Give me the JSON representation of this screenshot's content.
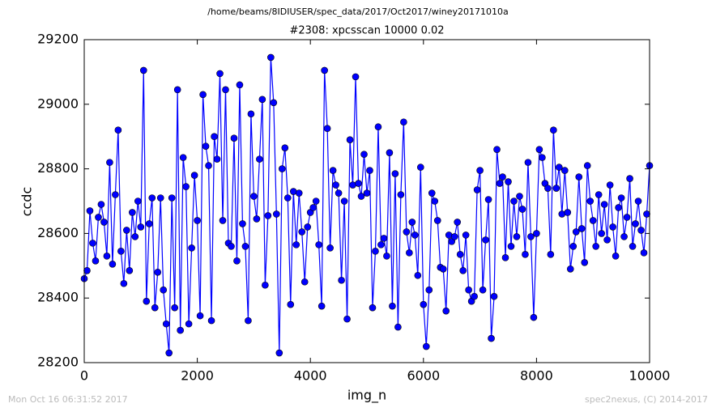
{
  "chart_data": {
    "type": "line",
    "suptitle": "/home/beams/8IDIUSER/spec_data/2017/Oct2017/winey20171010a",
    "title": "#2308: xpcsscan 10000 0.02",
    "xlabel": "img_n",
    "ylabel": "ccdc",
    "footer_left": "Mon Oct 16 06:31:52 2017",
    "footer_right": "spec2nexus, (C) 2014-2017",
    "color": "#0000ff",
    "marker": "circle",
    "xlim": [
      0,
      10000
    ],
    "xticks": [
      0,
      2000,
      4000,
      6000,
      8000,
      10000
    ],
    "ylim": [
      28200,
      29200
    ],
    "yticks": [
      28200,
      28400,
      28600,
      28800,
      29000,
      29200
    ],
    "x": [
      0,
      50,
      100,
      150,
      200,
      250,
      300,
      350,
      400,
      450,
      500,
      550,
      600,
      650,
      700,
      750,
      800,
      850,
      900,
      950,
      1000,
      1050,
      1100,
      1150,
      1200,
      1250,
      1300,
      1350,
      1400,
      1450,
      1500,
      1550,
      1600,
      1650,
      1700,
      1750,
      1800,
      1850,
      1900,
      1950,
      2000,
      2050,
      2100,
      2150,
      2200,
      2250,
      2300,
      2350,
      2400,
      2450,
      2500,
      2550,
      2600,
      2650,
      2700,
      2750,
      2800,
      2850,
      2900,
      2950,
      3000,
      3050,
      3100,
      3150,
      3200,
      3250,
      3300,
      3350,
      3400,
      3450,
      3500,
      3550,
      3600,
      3650,
      3700,
      3750,
      3800,
      3850,
      3900,
      3950,
      4000,
      4050,
      4100,
      4150,
      4200,
      4250,
      4300,
      4350,
      4400,
      4450,
      4500,
      4550,
      4600,
      4650,
      4700,
      4750,
      4800,
      4850,
      4900,
      4950,
      5000,
      5050,
      5100,
      5150,
      5200,
      5250,
      5300,
      5350,
      5400,
      5450,
      5500,
      5550,
      5600,
      5650,
      5700,
      5750,
      5800,
      5850,
      5900,
      5950,
      6000,
      6050,
      6100,
      6150,
      6200,
      6250,
      6300,
      6350,
      6400,
      6450,
      6500,
      6550,
      6600,
      6650,
      6700,
      6750,
      6800,
      6850,
      6900,
      6950,
      7000,
      7050,
      7100,
      7150,
      7200,
      7250,
      7300,
      7350,
      7400,
      7450,
      7500,
      7550,
      7600,
      7650,
      7700,
      7750,
      7800,
      7850,
      7900,
      7950,
      8000,
      8050,
      8100,
      8150,
      8200,
      8250,
      8300,
      8350,
      8400,
      8450,
      8500,
      8550,
      8600,
      8650,
      8700,
      8750,
      8800,
      8850,
      8900,
      8950,
      9000,
      9050,
      9100,
      9150,
      9200,
      9250,
      9300,
      9350,
      9400,
      9450,
      9500,
      9550,
      9600,
      9650,
      9700,
      9750,
      9800,
      9850,
      9900,
      9950,
      10000
    ],
    "values": [
      28460,
      28485,
      28670,
      28570,
      28515,
      28650,
      28690,
      28635,
      28530,
      28820,
      28505,
      28720,
      28920,
      28545,
      28445,
      28610,
      28485,
      28665,
      28590,
      28700,
      28620,
      29105,
      28390,
      28630,
      28710,
      28370,
      28480,
      28710,
      28425,
      28320,
      28230,
      28710,
      28370,
      29045,
      28300,
      28835,
      28745,
      28320,
      28555,
      28780,
      28640,
      28345,
      29030,
      28870,
      28810,
      28330,
      28900,
      28830,
      29095,
      28640,
      29045,
      28570,
      28560,
      28895,
      28515,
      29060,
      28630,
      28560,
      28330,
      28970,
      28715,
      28645,
      28830,
      29015,
      28440,
      28655,
      29145,
      29005,
      28660,
      28230,
      28800,
      28865,
      28710,
      28380,
      28730,
      28565,
      28725,
      28605,
      28450,
      28620,
      28665,
      28680,
      28700,
      28565,
      28375,
      29105,
      28925,
      28555,
      28795,
      28750,
      28725,
      28455,
      28700,
      28335,
      28890,
      28750,
      29085,
      28755,
      28715,
      28845,
      28725,
      28795,
      28370,
      28545,
      28930,
      28565,
      28585,
      28530,
      28850,
      28375,
      28785,
      28310,
      28720,
      28945,
      28605,
      28540,
      28635,
      28595,
      28470,
      28805,
      28380,
      28250,
      28425,
      28725,
      28700,
      28640,
      28495,
      28490,
      28360,
      28595,
      28575,
      28590,
      28635,
      28535,
      28485,
      28595,
      28425,
      28390,
      28405,
      28735,
      28795,
      28425,
      28580,
      28705,
      28275,
      28405,
      28860,
      28755,
      28775,
      28525,
      28760,
      28560,
      28700,
      28590,
      28715,
      28675,
      28535,
      28820,
      28590,
      28340,
      28600,
      28860,
      28835,
      28755,
      28740,
      28535,
      28920,
      28740,
      28805,
      28660,
      28795,
      28665,
      28490,
      28560,
      28605,
      28775,
      28615,
      28510,
      28810,
      28700,
      28640,
      28560,
      28720,
      28600,
      28690,
      28580,
      28750,
      28620,
      28530,
      28680,
      28710,
      28590,
      28650,
      28770,
      28560,
      28630,
      28700,
      28610,
      28540,
      28660,
      28810
    ]
  }
}
